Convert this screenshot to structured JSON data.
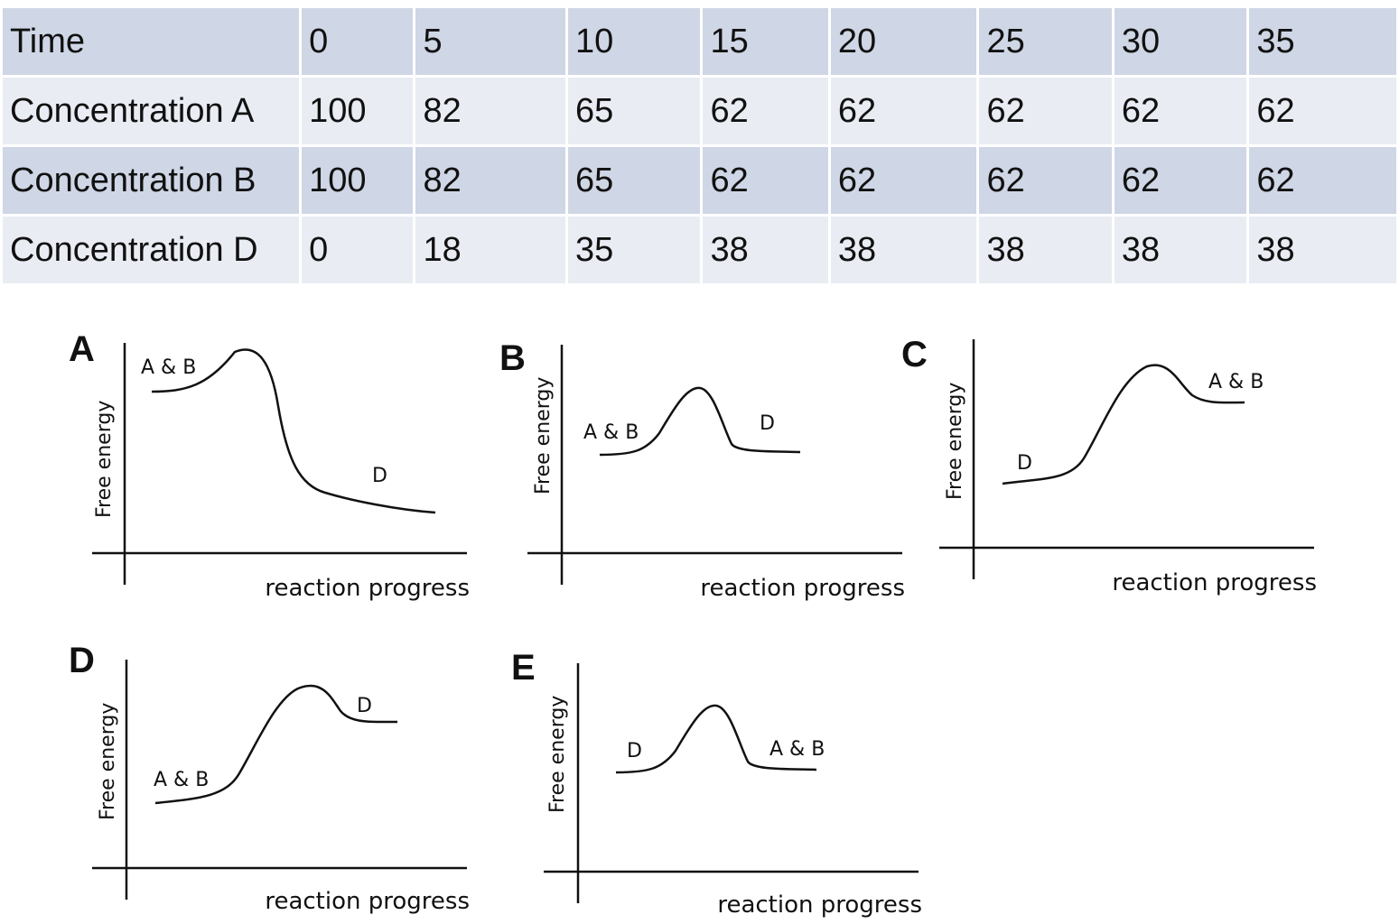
{
  "chart_data": [
    {
      "type": "table",
      "header": [
        "Time",
        "0",
        "5",
        "10",
        "15",
        "20",
        "25",
        "30",
        "35"
      ],
      "rows": [
        [
          "Concentration A",
          "100",
          "82",
          "65",
          "62",
          "62",
          "62",
          "62",
          "62"
        ],
        [
          "Concentration B",
          "100",
          "82",
          "65",
          "62",
          "62",
          "62",
          "62",
          "62"
        ],
        [
          "Concentration D",
          "0",
          "18",
          "35",
          "38",
          "38",
          "38",
          "38",
          "38"
        ]
      ]
    },
    {
      "type": "line",
      "panel": "A",
      "xlabel": "reaction progress",
      "ylabel": "Free energy",
      "x": [
        0,
        0.1,
        0.2,
        0.3,
        0.36,
        0.42,
        0.5,
        0.6,
        0.8,
        1.0
      ],
      "y": [
        0.58,
        0.6,
        0.68,
        0.8,
        0.78,
        0.55,
        0.25,
        0.18,
        0.14,
        0.1
      ],
      "annotations": [
        {
          "text": "A & B",
          "near": "start"
        },
        {
          "text": "D",
          "near": "end"
        }
      ]
    },
    {
      "type": "line",
      "panel": "B",
      "xlabel": "reaction progress",
      "ylabel": "Free energy",
      "x": [
        0,
        0.15,
        0.28,
        0.38,
        0.5,
        0.62,
        0.72,
        1.0
      ],
      "y": [
        0.45,
        0.46,
        0.52,
        0.65,
        0.8,
        0.52,
        0.47,
        0.47
      ],
      "annotations": [
        {
          "text": "A & B",
          "near": "start"
        },
        {
          "text": "D",
          "near": "end"
        }
      ]
    },
    {
      "type": "line",
      "panel": "C",
      "xlabel": "reaction progress",
      "ylabel": "Free energy",
      "x": [
        0,
        0.2,
        0.35,
        0.45,
        0.6,
        0.75,
        0.85,
        1.0
      ],
      "y": [
        0.3,
        0.33,
        0.4,
        0.65,
        0.82,
        0.7,
        0.66,
        0.66
      ],
      "annotations": [
        {
          "text": "D",
          "near": "start"
        },
        {
          "text": "A & B",
          "near": "end"
        }
      ]
    },
    {
      "type": "line",
      "panel": "D",
      "xlabel": "reaction progress",
      "ylabel": "Free energy",
      "x": [
        0,
        0.2,
        0.35,
        0.5,
        0.65,
        0.75,
        0.85,
        1.0
      ],
      "y": [
        0.3,
        0.33,
        0.4,
        0.7,
        0.86,
        0.72,
        0.68,
        0.68
      ],
      "annotations": [
        {
          "text": "A & B",
          "near": "start"
        },
        {
          "text": "D",
          "near": "end"
        }
      ]
    },
    {
      "type": "line",
      "panel": "E",
      "xlabel": "reaction progress",
      "ylabel": "Free energy",
      "x": [
        0,
        0.15,
        0.28,
        0.38,
        0.5,
        0.62,
        0.72,
        1.0
      ],
      "y": [
        0.45,
        0.46,
        0.52,
        0.65,
        0.8,
        0.52,
        0.47,
        0.47
      ],
      "annotations": [
        {
          "text": "D",
          "near": "start"
        },
        {
          "text": "A & B",
          "near": "end"
        }
      ]
    }
  ]
}
